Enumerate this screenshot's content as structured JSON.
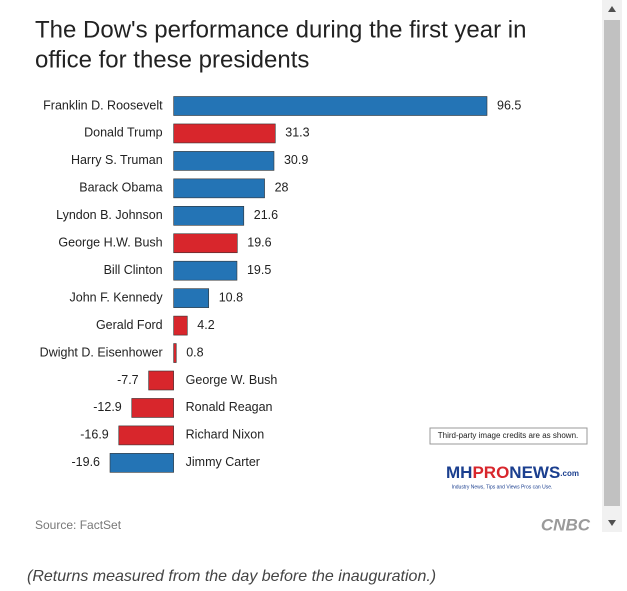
{
  "chart_data": {
    "type": "bar",
    "title": [
      "The Dow's performance during the first year in",
      "office for these presidents"
    ],
    "categories": [
      "Franklin D. Roosevelt",
      "Donald Trump",
      "Harry S. Truman",
      "Barack Obama",
      "Lyndon B. Johnson",
      "George H.W. Bush",
      "Bill Clinton",
      "John F. Kennedy",
      "Gerald Ford",
      "Dwight D. Eisenhower",
      "George W. Bush",
      "Ronald Reagan",
      "Richard Nixon",
      "Jimmy Carter"
    ],
    "values": [
      96.5,
      31.3,
      30.9,
      28,
      21.6,
      19.6,
      19.5,
      10.8,
      4.2,
      0.8,
      -7.7,
      -12.9,
      -16.9,
      -19.6
    ],
    "colors": [
      "#2474b5",
      "#d8262c",
      "#2474b5",
      "#2474b5",
      "#2474b5",
      "#d8262c",
      "#2474b5",
      "#2474b5",
      "#d8262c",
      "#d8262c",
      "#d8262c",
      "#d8262c",
      "#d8262c",
      "#2474b5"
    ],
    "source": "Source: FactSet",
    "brand": "CNBC",
    "note": "(Returns measured from the day before the inauguration.)",
    "watermark": {
      "credit": "Third-party image credits are as shown.",
      "logo": [
        "MH",
        "PRO",
        "NEWS",
        ".com"
      ],
      "tagline": "Industry News, Tips and Views Pros can Use."
    }
  }
}
